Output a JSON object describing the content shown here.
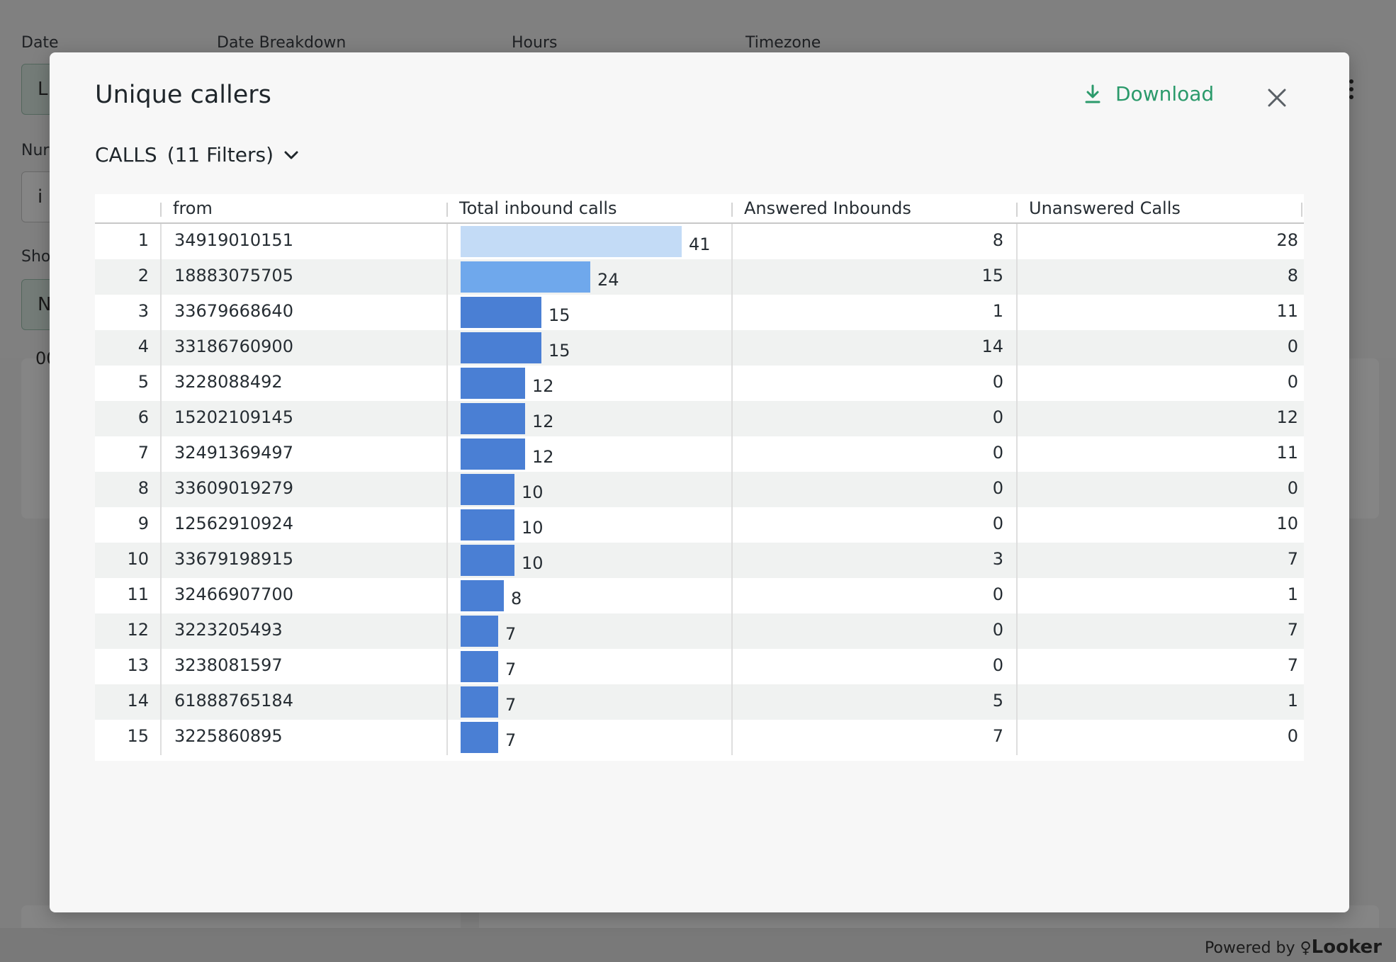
{
  "background": {
    "filters": [
      {
        "label": "Date",
        "value": "L"
      },
      {
        "label": "Date Breakdown",
        "value": ""
      },
      {
        "label": "Hours",
        "value": ""
      },
      {
        "label": "Timezone",
        "value": ""
      },
      {
        "label": "Nur",
        "value": "i"
      },
      {
        "label": "Sho",
        "value": "N"
      }
    ],
    "card_text": "00",
    "footer": {
      "powered_by": "Powered by",
      "brand": "Looker"
    }
  },
  "modal": {
    "title": "Unique callers",
    "download_label": "Download",
    "subheader": {
      "name": "CALLS",
      "filters": "(11 Filters)"
    },
    "table": {
      "columns": [
        "",
        "from",
        "Total inbound calls",
        "Answered Inbounds",
        "Unanswered Calls"
      ],
      "max_total": 41,
      "bar_colors": {
        "light": "#c3dbf6",
        "medium": "#6fa8ec",
        "dark": "#4a7fd4"
      },
      "rows": [
        {
          "idx": "1",
          "from": "34919010151",
          "total": 41,
          "answered": "8",
          "unanswered": "28"
        },
        {
          "idx": "2",
          "from": "18883075705",
          "total": 24,
          "answered": "15",
          "unanswered": "8"
        },
        {
          "idx": "3",
          "from": "33679668640",
          "total": 15,
          "answered": "1",
          "unanswered": "11"
        },
        {
          "idx": "4",
          "from": "33186760900",
          "total": 15,
          "answered": "14",
          "unanswered": "0"
        },
        {
          "idx": "5",
          "from": "3228088492",
          "total": 12,
          "answered": "0",
          "unanswered": "0"
        },
        {
          "idx": "6",
          "from": "15202109145",
          "total": 12,
          "answered": "0",
          "unanswered": "12"
        },
        {
          "idx": "7",
          "from": "32491369497",
          "total": 12,
          "answered": "0",
          "unanswered": "11"
        },
        {
          "idx": "8",
          "from": "33609019279",
          "total": 10,
          "answered": "0",
          "unanswered": "0"
        },
        {
          "idx": "9",
          "from": "12562910924",
          "total": 10,
          "answered": "0",
          "unanswered": "10"
        },
        {
          "idx": "10",
          "from": "33679198915",
          "total": 10,
          "answered": "3",
          "unanswered": "7"
        },
        {
          "idx": "11",
          "from": "32466907700",
          "total": 8,
          "answered": "0",
          "unanswered": "1"
        },
        {
          "idx": "12",
          "from": "3223205493",
          "total": 7,
          "answered": "0",
          "unanswered": "7"
        },
        {
          "idx": "13",
          "from": "3238081597",
          "total": 7,
          "answered": "0",
          "unanswered": "7"
        },
        {
          "idx": "14",
          "from": "61888765184",
          "total": 7,
          "answered": "5",
          "unanswered": "1"
        },
        {
          "idx": "15",
          "from": "3225860895",
          "total": 7,
          "answered": "7",
          "unanswered": "0"
        }
      ]
    }
  }
}
